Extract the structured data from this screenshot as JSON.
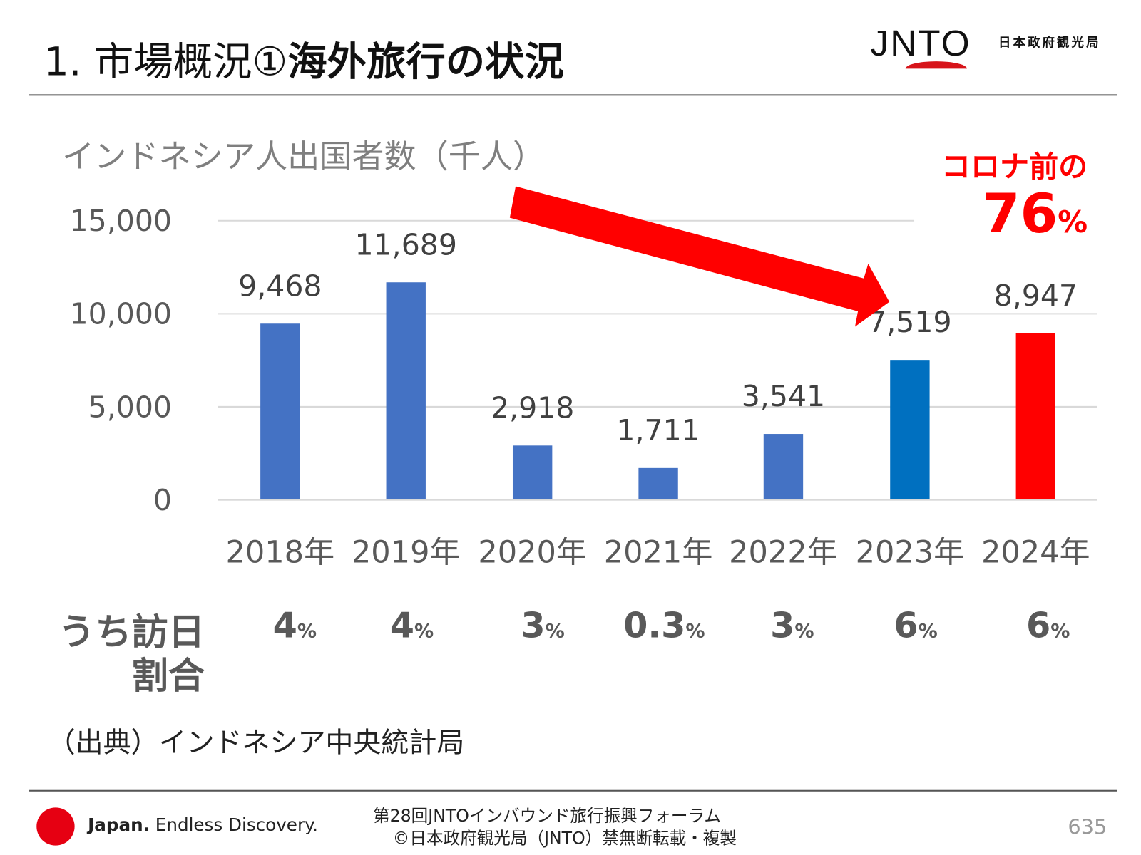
{
  "header": {
    "title_prefix": "1. 市場概況①",
    "title_bold": "海外旅行の状況",
    "logo_text": "JNTO",
    "logo_subtitle": "日本政府観光局"
  },
  "annotation": {
    "line1": "コロナ前の",
    "value": "76",
    "unit": "%",
    "arrow_color": "#ff0000"
  },
  "chart_data": {
    "type": "bar",
    "title": "インドネシア人出国者数（千人）",
    "categories": [
      "2018年",
      "2019年",
      "2020年",
      "2021年",
      "2022年",
      "2023年",
      "2024年"
    ],
    "values": [
      9468,
      11689,
      2918,
      1711,
      3541,
      7519,
      8947
    ],
    "value_labels": [
      "9,468",
      "11,689",
      "2,918",
      "1,711",
      "3,541",
      "7,519",
      "8,947"
    ],
    "colors": [
      "#4472c4",
      "#4472c4",
      "#4472c4",
      "#4472c4",
      "#4472c4",
      "#0070c0",
      "#ff0000"
    ],
    "ylim": [
      0,
      15000
    ],
    "yticks": [
      0,
      5000,
      10000,
      15000
    ],
    "ytick_labels": [
      "0",
      "5,000",
      "10,000",
      "15,000"
    ],
    "grid": true,
    "xlabel": "",
    "ylabel": ""
  },
  "share_row": {
    "label_line1": "うち訪日",
    "label_line2": "割合",
    "values": [
      "4",
      "4",
      "3",
      "0.3",
      "3",
      "6",
      "6"
    ],
    "unit": "%"
  },
  "source": "（出典）インドネシア中央統計局",
  "footer": {
    "brand_bold": "Japan.",
    "brand_tagline": "Endless Discovery.",
    "line1": "第28回JNTOインバウンド旅行振興フォーラム",
    "line2": "©日本政府観光局（JNTO）禁無断転載・複製",
    "page": "635"
  }
}
